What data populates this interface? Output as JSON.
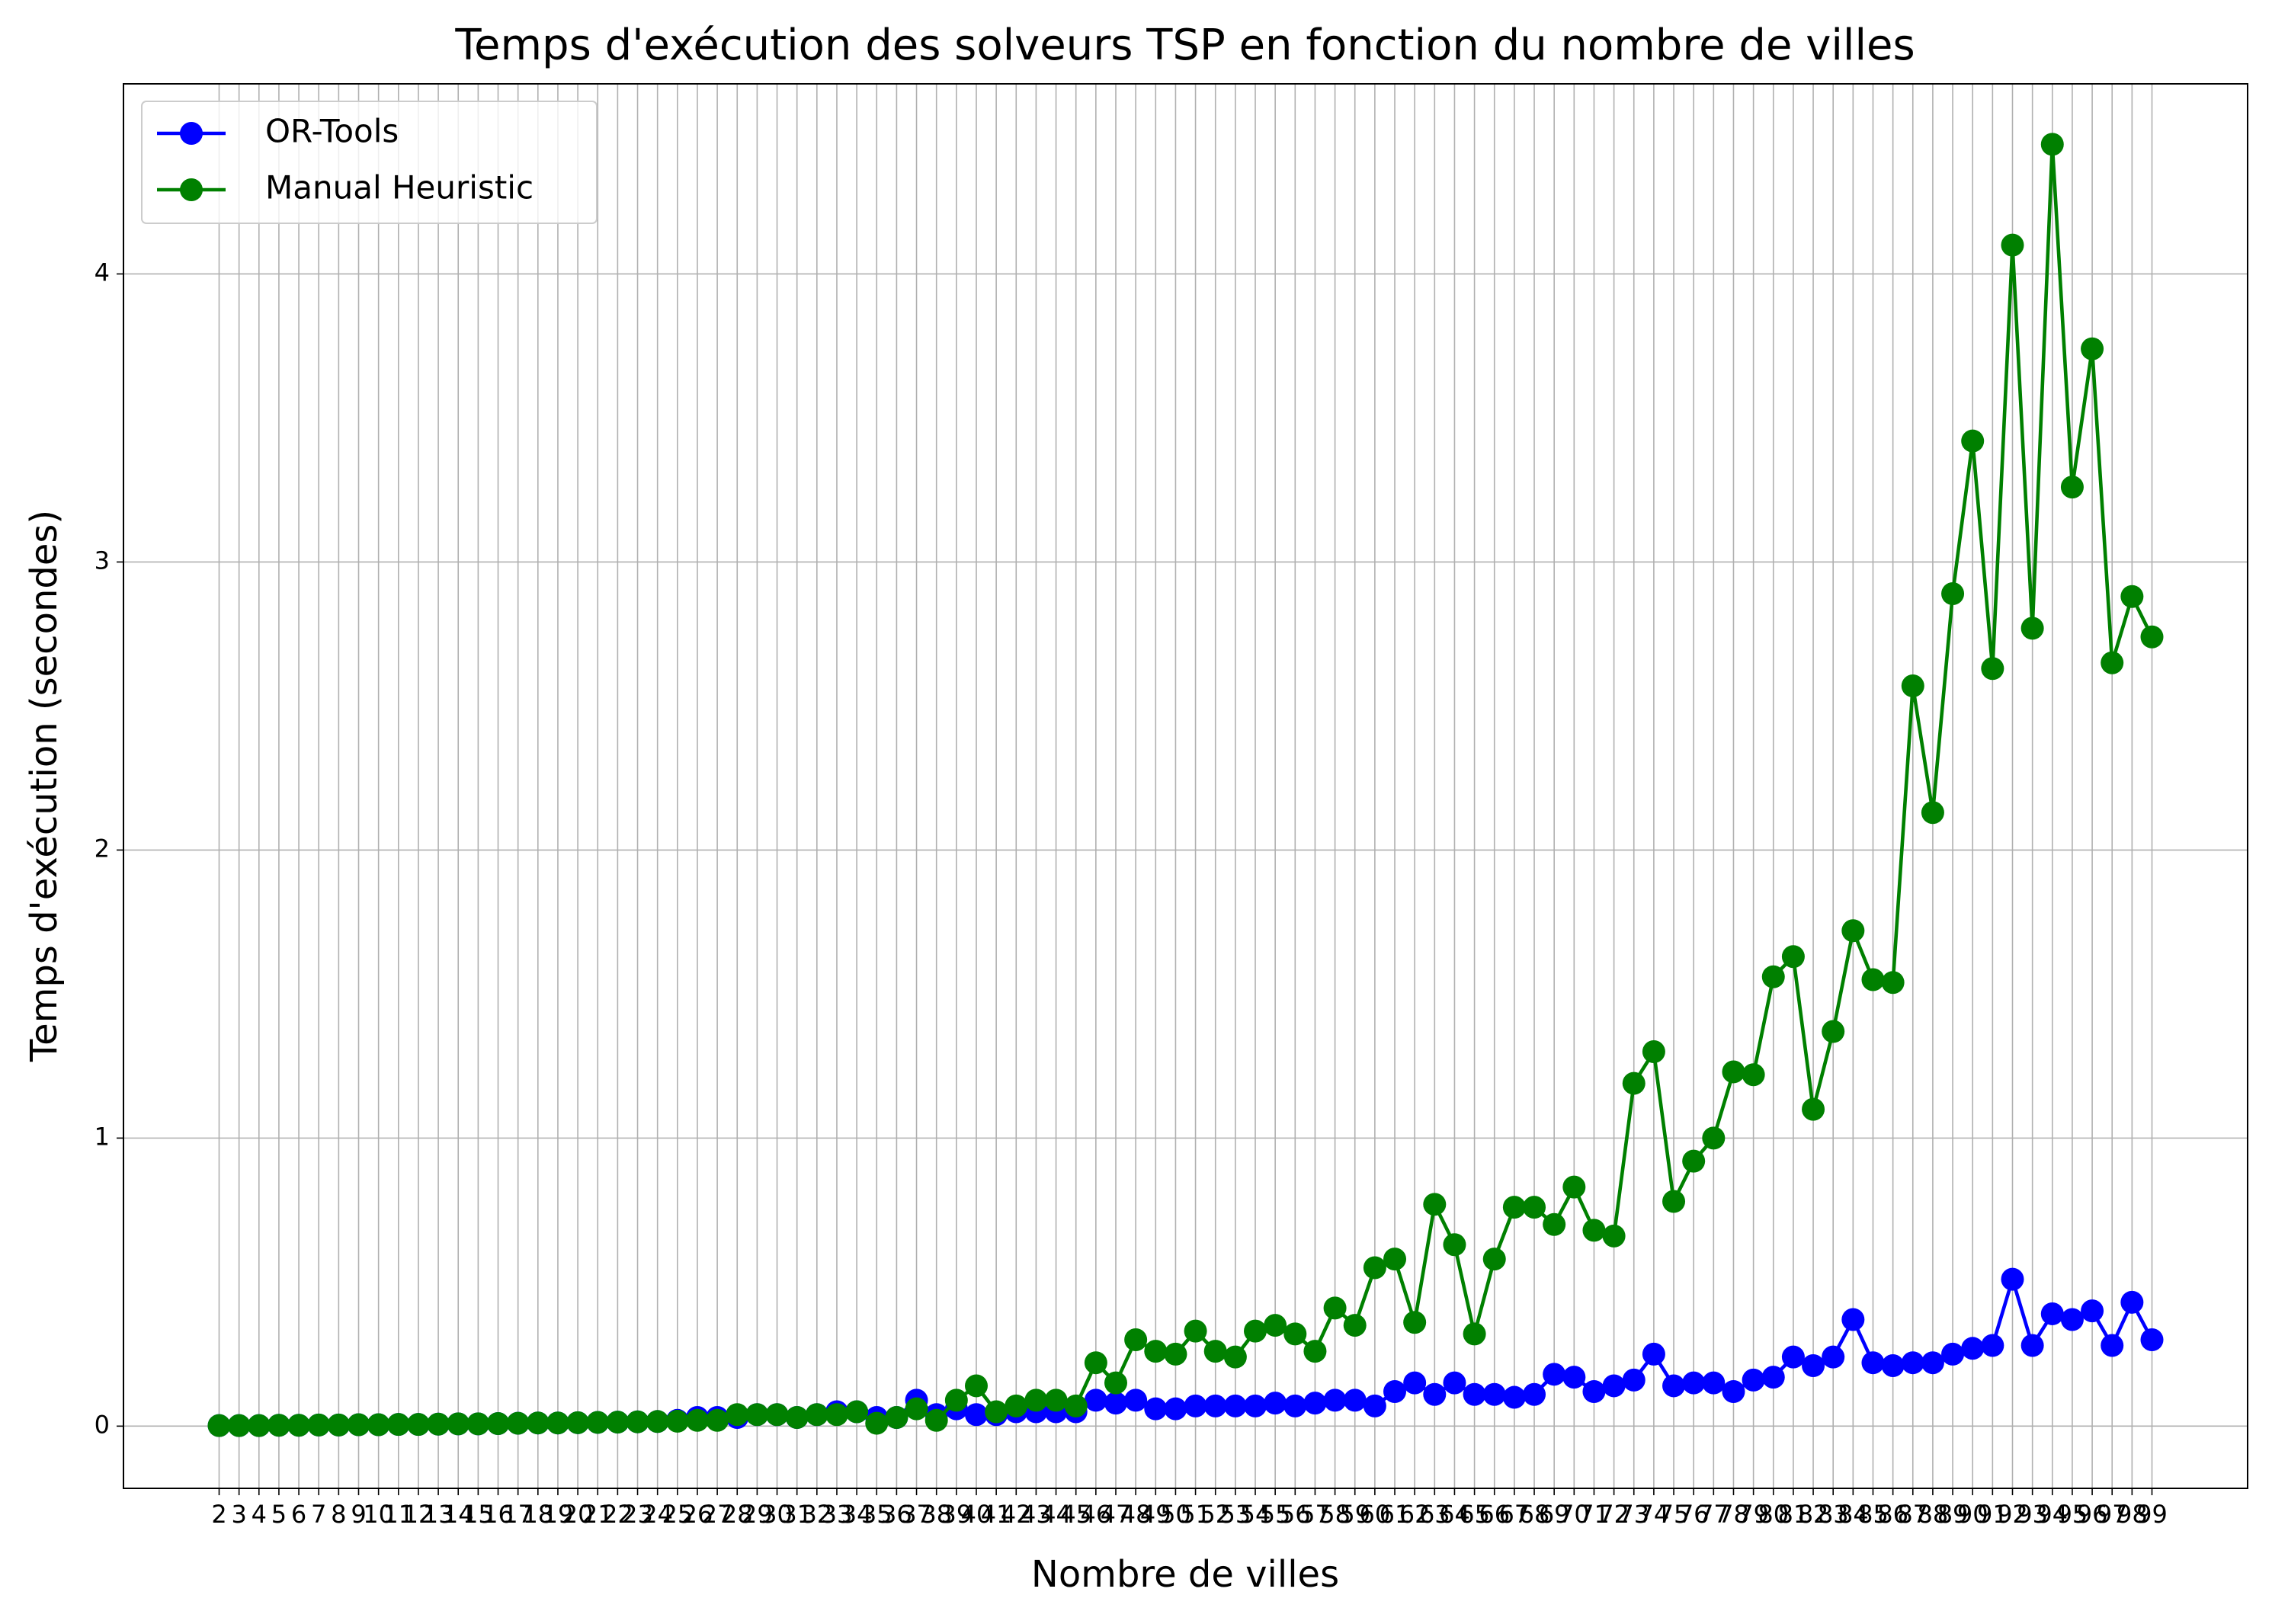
{
  "chart_data": {
    "type": "line",
    "title": "Temps d'exécution des solveurs TSP en fonction du nombre de villes",
    "x_label": "Nombre de villes",
    "y_label": "Temps d'exécution (secondes)",
    "x": [
      2,
      3,
      4,
      5,
      6,
      7,
      8,
      9,
      10,
      11,
      12,
      13,
      14,
      15,
      16,
      17,
      18,
      19,
      20,
      21,
      22,
      23,
      24,
      25,
      26,
      27,
      28,
      29,
      30,
      31,
      32,
      33,
      34,
      35,
      36,
      37,
      38,
      39,
      40,
      41,
      42,
      43,
      44,
      45,
      46,
      47,
      48,
      49,
      50,
      51,
      52,
      53,
      54,
      55,
      56,
      57,
      58,
      59,
      60,
      61,
      62,
      63,
      64,
      65,
      66,
      67,
      68,
      69,
      70,
      71,
      72,
      73,
      74,
      75,
      76,
      77,
      78,
      79,
      80,
      81,
      82,
      83,
      84,
      85,
      86,
      87,
      88,
      89,
      90,
      91,
      92,
      93,
      94,
      95,
      96,
      97,
      98,
      99
    ],
    "series": [
      {
        "name": "OR-Tools",
        "color": "#0000ff",
        "values": [
          0.002,
          0.002,
          0.002,
          0.003,
          0.003,
          0.004,
          0.004,
          0.005,
          0.005,
          0.006,
          0.006,
          0.007,
          0.008,
          0.008,
          0.009,
          0.01,
          0.011,
          0.011,
          0.012,
          0.013,
          0.014,
          0.015,
          0.016,
          0.02,
          0.03,
          0.03,
          0.03,
          0.04,
          0.04,
          0.03,
          0.04,
          0.05,
          0.05,
          0.03,
          0.03,
          0.09,
          0.04,
          0.06,
          0.04,
          0.04,
          0.05,
          0.05,
          0.05,
          0.05,
          0.09,
          0.08,
          0.09,
          0.06,
          0.06,
          0.07,
          0.07,
          0.07,
          0.07,
          0.08,
          0.07,
          0.08,
          0.09,
          0.09,
          0.07,
          0.12,
          0.15,
          0.11,
          0.15,
          0.11,
          0.11,
          0.1,
          0.11,
          0.18,
          0.17,
          0.12,
          0.14,
          0.16,
          0.25,
          0.14,
          0.15,
          0.15,
          0.12,
          0.16,
          0.17,
          0.24,
          0.21,
          0.24,
          0.37,
          0.22,
          0.21,
          0.22,
          0.22,
          0.25,
          0.27,
          0.28,
          0.51,
          0.28,
          0.39,
          0.37,
          0.4,
          0.28,
          0.43,
          0.3
        ]
      },
      {
        "name": "Manual Heuristic",
        "color": "#008000",
        "values": [
          0.002,
          0.002,
          0.002,
          0.003,
          0.003,
          0.004,
          0.004,
          0.005,
          0.005,
          0.006,
          0.006,
          0.007,
          0.008,
          0.008,
          0.009,
          0.01,
          0.011,
          0.011,
          0.012,
          0.013,
          0.014,
          0.015,
          0.016,
          0.017,
          0.02,
          0.02,
          0.04,
          0.04,
          0.04,
          0.03,
          0.04,
          0.04,
          0.05,
          0.01,
          0.03,
          0.06,
          0.02,
          0.09,
          0.14,
          0.05,
          0.07,
          0.09,
          0.09,
          0.07,
          0.22,
          0.15,
          0.3,
          0.26,
          0.25,
          0.33,
          0.26,
          0.24,
          0.33,
          0.35,
          0.32,
          0.26,
          0.41,
          0.35,
          0.55,
          0.58,
          0.36,
          0.77,
          0.63,
          0.32,
          0.58,
          0.76,
          0.76,
          0.7,
          0.83,
          0.68,
          0.66,
          1.19,
          1.3,
          0.78,
          0.92,
          1.0,
          1.23,
          1.22,
          1.56,
          1.63,
          1.1,
          1.37,
          1.72,
          1.55,
          1.54,
          2.57,
          2.13,
          2.89,
          3.42,
          2.63,
          4.1,
          2.77,
          4.45,
          3.26,
          3.74,
          2.65,
          2.88,
          2.74
        ]
      }
    ],
    "xlim": [
      -2.8,
      103.8
    ],
    "ylim": [
      -0.216,
      4.66
    ],
    "xticks": [
      2,
      3,
      4,
      5,
      6,
      7,
      8,
      9,
      10,
      11,
      12,
      13,
      14,
      15,
      16,
      17,
      18,
      19,
      20,
      21,
      22,
      23,
      24,
      25,
      26,
      27,
      28,
      29,
      30,
      31,
      32,
      33,
      34,
      35,
      36,
      37,
      38,
      39,
      40,
      41,
      42,
      43,
      44,
      45,
      46,
      47,
      48,
      49,
      50,
      51,
      52,
      53,
      54,
      55,
      56,
      57,
      58,
      59,
      60,
      61,
      62,
      63,
      64,
      65,
      66,
      67,
      68,
      69,
      70,
      71,
      72,
      73,
      74,
      75,
      76,
      77,
      78,
      79,
      80,
      81,
      82,
      83,
      84,
      85,
      86,
      87,
      88,
      89,
      90,
      91,
      92,
      93,
      94,
      95,
      96,
      97,
      98,
      99
    ],
    "yticks": [
      0,
      1,
      2,
      3,
      4
    ],
    "grid": true,
    "legend": "upper left"
  }
}
